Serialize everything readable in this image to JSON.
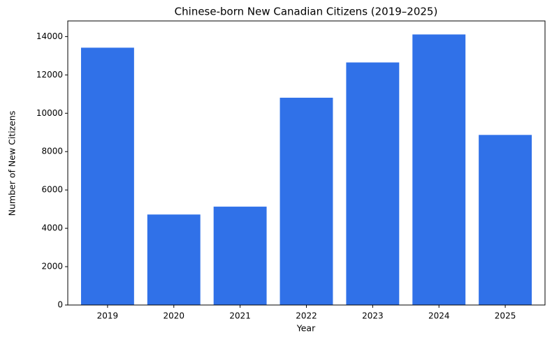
{
  "chart_data": {
    "type": "bar",
    "title": "Chinese-born New Canadian Citizens (2019–2025)",
    "x_label": "Year",
    "y_label": "Number of New Citizens",
    "categories": [
      "2019",
      "2020",
      "2021",
      "2022",
      "2023",
      "2024",
      "2025"
    ],
    "values": [
      13420,
      4720,
      5130,
      10810,
      12650,
      14110,
      8870
    ],
    "color": "#3071e8",
    "ylim": [
      0,
      14815
    ],
    "yticks": [
      0,
      2000,
      4000,
      6000,
      8000,
      10000,
      12000,
      14000
    ],
    "grid": false
  }
}
